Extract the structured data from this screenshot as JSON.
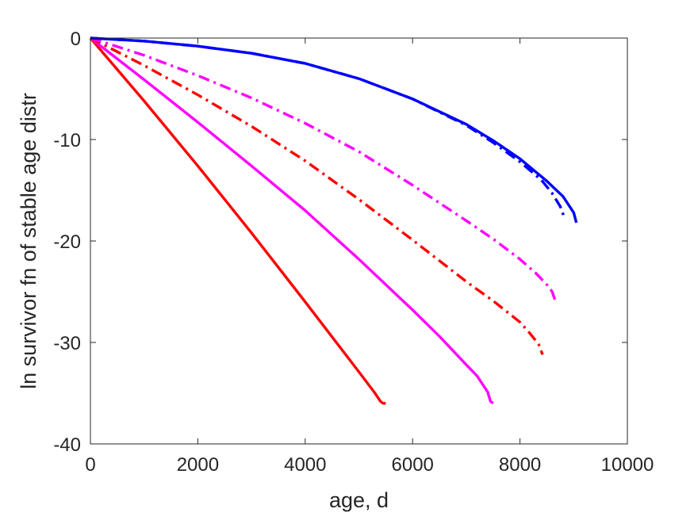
{
  "chart_data": {
    "type": "line",
    "title": "",
    "xlabel": "age, d",
    "ylabel": "ln survivor fn of stable age distr",
    "xlim": [
      0,
      10000
    ],
    "ylim": [
      -40,
      0
    ],
    "x_ticks": [
      0,
      2000,
      4000,
      6000,
      8000,
      10000
    ],
    "y_ticks": [
      -40,
      -30,
      -20,
      -10,
      0
    ],
    "x_tick_labels": [
      "0",
      "2000",
      "4000",
      "6000",
      "8000",
      "10000"
    ],
    "y_tick_labels": [
      "-40",
      "-30",
      "-20",
      "-10",
      "0"
    ],
    "grid": false,
    "legend": "none",
    "series": [
      {
        "color": "#ff0000",
        "style": "solid",
        "x": [
          0,
          1000,
          2000,
          3000,
          4000,
          5000,
          5300,
          5400,
          5450,
          5500
        ],
        "y": [
          0,
          -6.2,
          -12.6,
          -19.2,
          -26.0,
          -32.9,
          -35.0,
          -35.8,
          -36.0,
          -36.0
        ]
      },
      {
        "color": "#ff00ff",
        "style": "solid",
        "x": [
          0,
          1000,
          2000,
          3000,
          4000,
          5000,
          6000,
          6500,
          7000,
          7200,
          7400,
          7450,
          7500
        ],
        "y": [
          0,
          -4.1,
          -8.3,
          -12.6,
          -17.0,
          -21.8,
          -26.8,
          -29.4,
          -32.2,
          -33.3,
          -34.9,
          -35.8,
          -36.0
        ]
      },
      {
        "color": "#ff0000",
        "style": "dashdot",
        "x": [
          0,
          1000,
          2000,
          3000,
          4000,
          5000,
          6000,
          7000,
          7500,
          8000,
          8200,
          8350,
          8420
        ],
        "y": [
          0,
          -2.7,
          -5.6,
          -8.7,
          -12.1,
          -15.9,
          -19.9,
          -24.0,
          -25.9,
          -28.0,
          -29.2,
          -30.2,
          -31.2
        ]
      },
      {
        "color": "#ff00ff",
        "style": "dashdot",
        "x": [
          0,
          1000,
          2000,
          3000,
          4000,
          5000,
          6000,
          7000,
          7500,
          8000,
          8300,
          8500,
          8600,
          8650
        ],
        "y": [
          0,
          -1.7,
          -3.7,
          -5.9,
          -8.4,
          -11.2,
          -14.5,
          -18.0,
          -19.8,
          -21.8,
          -23.2,
          -24.3,
          -25.0,
          -25.8
        ]
      },
      {
        "color": "#0000ff",
        "style": "dashdot",
        "x": [
          0,
          1000,
          2000,
          3000,
          4000,
          5000,
          6000,
          7000,
          7500,
          8000,
          8400,
          8600,
          8750,
          8820
        ],
        "y": [
          0,
          -0.3,
          -0.8,
          -1.5,
          -2.5,
          -4.0,
          -6.0,
          -8.6,
          -10.3,
          -12.2,
          -14.0,
          -15.3,
          -16.6,
          -17.6
        ]
      },
      {
        "color": "#0000ff",
        "style": "solid",
        "x": [
          0,
          1000,
          2000,
          3000,
          4000,
          5000,
          6000,
          7000,
          7500,
          8000,
          8500,
          8800,
          9000,
          9050
        ],
        "y": [
          0,
          -0.3,
          -0.8,
          -1.5,
          -2.5,
          -4.0,
          -6.0,
          -8.5,
          -10.1,
          -11.9,
          -14.1,
          -15.6,
          -17.2,
          -18.2
        ]
      }
    ]
  }
}
